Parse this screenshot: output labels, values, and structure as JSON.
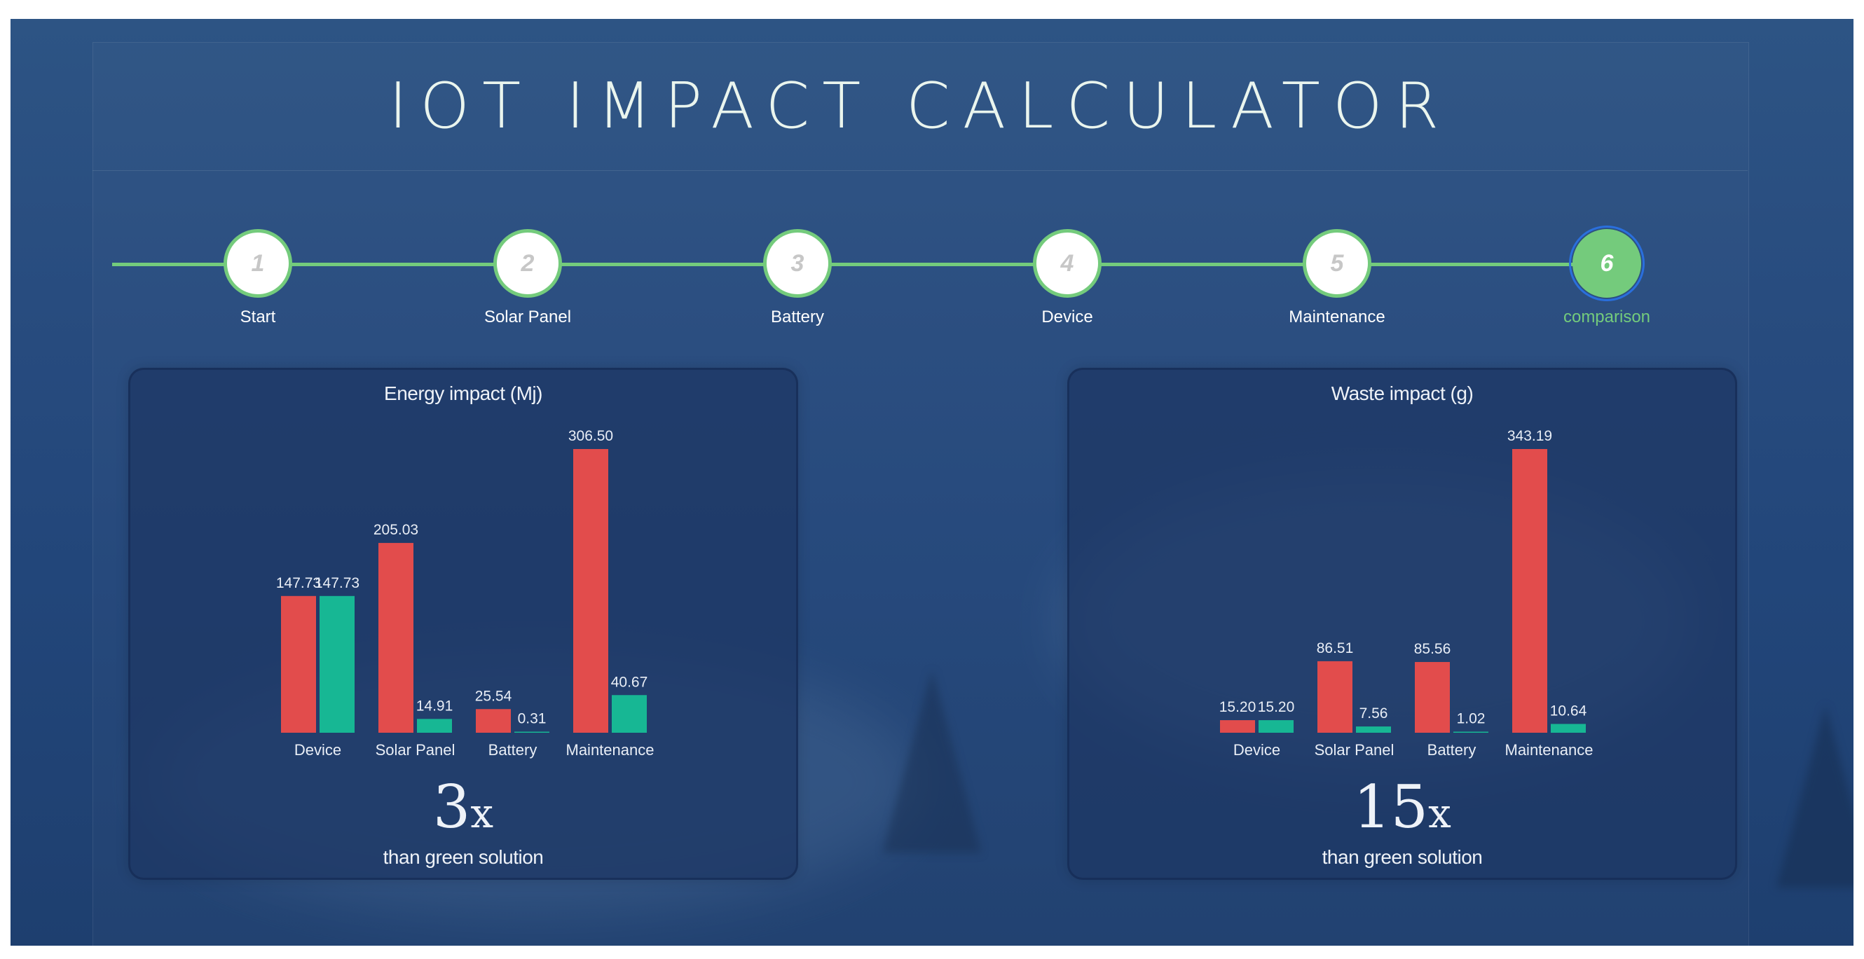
{
  "title": "IOT IMPACT CALCULATOR",
  "steps": [
    {
      "number": "1",
      "label": "Start"
    },
    {
      "number": "2",
      "label": "Solar Panel"
    },
    {
      "number": "3",
      "label": "Battery"
    },
    {
      "number": "4",
      "label": "Device"
    },
    {
      "number": "5",
      "label": "Maintenance"
    },
    {
      "number": "6",
      "label": "comparison"
    }
  ],
  "active_step": 6,
  "colors": {
    "accent": "#74cb7c",
    "red_series": "#e24c4c",
    "green_series": "#17b794"
  },
  "energy": {
    "ratio": "3",
    "ratio_suffix": "x",
    "caption": "than green solution"
  },
  "waste": {
    "ratio": "15",
    "ratio_suffix": "x",
    "caption": "than green solution"
  },
  "chart_data": [
    {
      "type": "bar",
      "title": "Energy impact (Mj)",
      "categories": [
        "Device",
        "Solar Panel",
        "Battery",
        "Maintenance"
      ],
      "series": [
        {
          "values": [
            147.73,
            205.03,
            25.54,
            306.5
          ],
          "labels": [
            "147.73",
            "205.03",
            "25.54",
            "306.50"
          ]
        },
        {
          "values": [
            147.73,
            14.91,
            0.31,
            40.67
          ],
          "labels": [
            "147.73",
            "14.91",
            "0.31",
            "40.67"
          ]
        }
      ],
      "ylim": [
        0,
        306.5
      ],
      "grid": false,
      "legend": "none"
    },
    {
      "type": "bar",
      "title": "Waste impact (g)",
      "categories": [
        "Device",
        "Solar Panel",
        "Battery",
        "Maintenance"
      ],
      "series": [
        {
          "values": [
            15.2,
            86.51,
            85.56,
            343.19
          ],
          "labels": [
            "15.20",
            "86.51",
            "85.56",
            "343.19"
          ]
        },
        {
          "values": [
            15.2,
            7.56,
            1.02,
            10.64
          ],
          "labels": [
            "15.20",
            "7.56",
            "1.02",
            "10.64"
          ]
        }
      ],
      "ylim": [
        0,
        343.19
      ],
      "grid": false,
      "legend": "none"
    }
  ]
}
